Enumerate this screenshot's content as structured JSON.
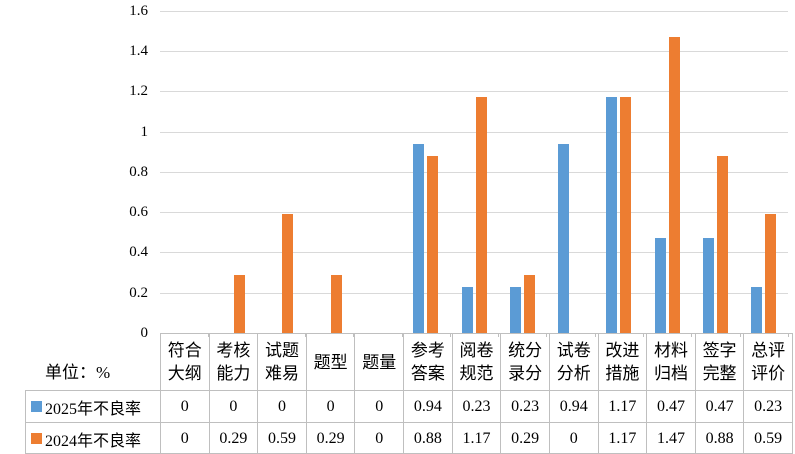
{
  "unit_label": "单位：%",
  "chart_data": {
    "type": "bar",
    "title": "",
    "xlabel": "",
    "ylabel": "单位：%",
    "categories": [
      "符合大纲",
      "考核能力",
      "试题难易",
      "题型",
      "题量",
      "参考答案",
      "阅卷规范",
      "统分录分",
      "试卷分析",
      "改进措施",
      "材料归档",
      "签字完整",
      "总评评价"
    ],
    "series": [
      {
        "name": "2025年不良率",
        "color": "#5B9BD5",
        "values": [
          "0",
          "0",
          "0",
          "0",
          "0",
          "0.94",
          "0.23",
          "0.23",
          "0.94",
          "1.17",
          "0.47",
          "0.47",
          "0.23"
        ]
      },
      {
        "name": "2024年不良率",
        "color": "#ED7D31",
        "values": [
          "0",
          "0.29",
          "0.59",
          "0.29",
          "0",
          "0.88",
          "1.17",
          "0.29",
          "0",
          "1.17",
          "1.47",
          "0.88",
          "0.59"
        ]
      }
    ],
    "ylim": [
      0,
      1.6
    ],
    "yticks": [
      "0",
      "0.2",
      "0.4",
      "0.6",
      "0.8",
      "1",
      "1.2",
      "1.4",
      "1.6"
    ],
    "grid": true,
    "gridline_color": "#D9D9D9",
    "table_border_color": "#BFBFBF",
    "legend_position": "data-table-left"
  }
}
